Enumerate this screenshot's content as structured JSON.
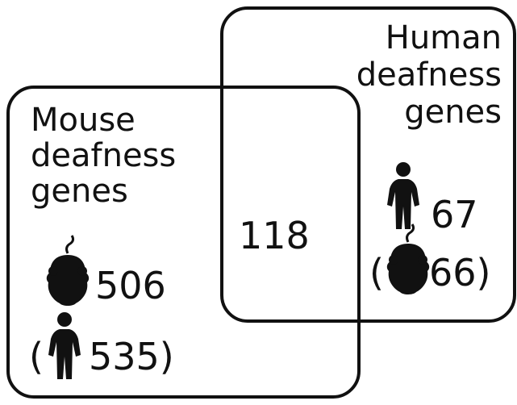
{
  "mouse": {
    "label_lines": [
      "Mouse",
      "deafness",
      "genes"
    ],
    "count": "506",
    "paren_open": "(",
    "ortholog_count": "535)"
  },
  "human": {
    "label_lines": [
      "Human",
      "deafness",
      "genes"
    ],
    "count": "67",
    "paren_open": "(",
    "ortholog_count": "66)"
  },
  "overlap": {
    "count": "118"
  }
}
